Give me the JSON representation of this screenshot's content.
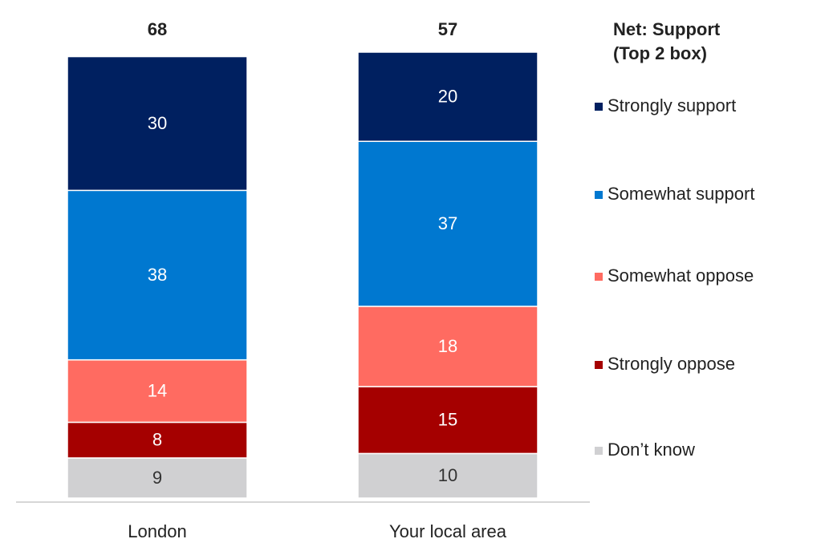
{
  "chart_data": {
    "type": "stacked-bar",
    "categories": [
      "London",
      "Your local area"
    ],
    "net_label": [
      "Net: Support",
      "(Top 2 box)"
    ],
    "net_values": [
      68,
      57
    ],
    "series": [
      {
        "name": "Strongly support",
        "color": "#002060",
        "values": [
          30,
          20
        ]
      },
      {
        "name": "Somewhat support",
        "color": "#0078d0",
        "values": [
          38,
          37
        ]
      },
      {
        "name": "Somewhat oppose",
        "color": "#ff6b61",
        "values": [
          14,
          18
        ]
      },
      {
        "name": "Strongly oppose",
        "color": "#a50000",
        "values": [
          8,
          15
        ]
      },
      {
        "name": "Don’t know",
        "color": "#d0d0d2",
        "values": [
          9,
          10
        ]
      }
    ]
  }
}
